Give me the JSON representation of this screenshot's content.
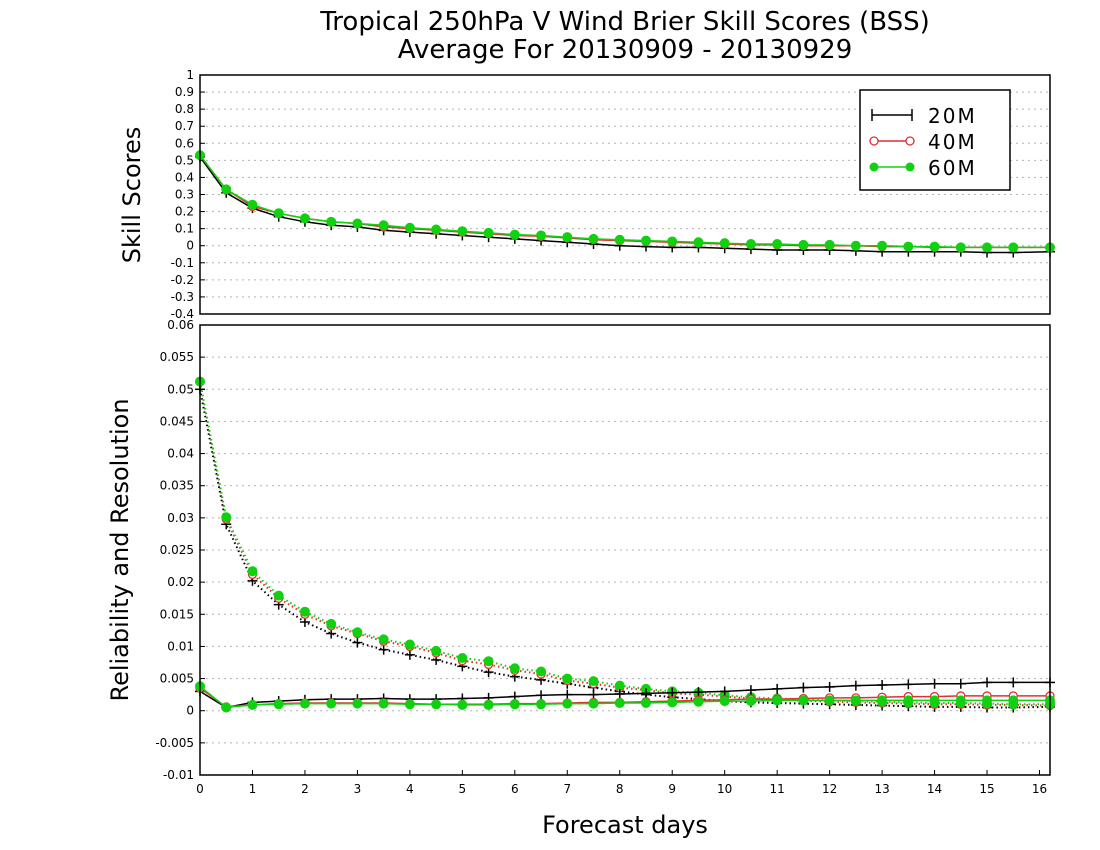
{
  "chart_data": [
    {
      "type": "line",
      "title": "Tropical 250hPa V Wind Brier Skill Scores (BSS)",
      "subtitle": "Average For 20130909 - 20130929",
      "xlabel": "",
      "ylabel": "Skill Scores",
      "xlim": [
        0,
        16.2
      ],
      "ylim": [
        -0.4,
        1
      ],
      "yticks": [
        "1",
        "0.9",
        "0.8",
        "0.7",
        "0.6",
        "0.5",
        "0.4",
        "0.3",
        "0.2",
        "0.1",
        "0",
        "-0.1",
        "-0.2",
        "-0.3",
        "-0.4"
      ],
      "grid": true,
      "legend_position": "top-right",
      "x": [
        0,
        0.5,
        1,
        1.5,
        2,
        2.5,
        3,
        3.5,
        4,
        4.5,
        5,
        5.5,
        6,
        6.5,
        7,
        7.5,
        8,
        8.5,
        9,
        9.5,
        10,
        10.5,
        11,
        11.5,
        12,
        12.5,
        13,
        13.5,
        14,
        14.5,
        15,
        15.5,
        16.2
      ],
      "series": [
        {
          "name": "20M",
          "values": [
            0.52,
            0.31,
            0.22,
            0.17,
            0.14,
            0.12,
            0.11,
            0.09,
            0.08,
            0.07,
            0.06,
            0.05,
            0.04,
            0.03,
            0.02,
            0.01,
            0.0,
            -0.005,
            -0.01,
            -0.01,
            -0.015,
            -0.02,
            -0.025,
            -0.025,
            -0.025,
            -0.03,
            -0.035,
            -0.035,
            -0.035,
            -0.035,
            -0.04,
            -0.04,
            -0.035
          ]
        },
        {
          "name": "40M",
          "values": [
            0.53,
            0.33,
            0.23,
            0.19,
            0.16,
            0.14,
            0.13,
            0.11,
            0.1,
            0.09,
            0.08,
            0.07,
            0.06,
            0.055,
            0.045,
            0.035,
            0.03,
            0.025,
            0.02,
            0.015,
            0.01,
            0.005,
            0.005,
            0.0,
            0.0,
            0.0,
            -0.005,
            -0.005,
            -0.01,
            -0.01,
            -0.01,
            -0.01,
            -0.01
          ]
        },
        {
          "name": "60M",
          "values": [
            0.53,
            0.33,
            0.24,
            0.19,
            0.16,
            0.14,
            0.13,
            0.12,
            0.105,
            0.095,
            0.085,
            0.075,
            0.065,
            0.06,
            0.05,
            0.04,
            0.035,
            0.03,
            0.025,
            0.02,
            0.015,
            0.01,
            0.01,
            0.005,
            0.005,
            0.0,
            0.0,
            -0.005,
            -0.005,
            -0.01,
            -0.01,
            -0.01,
            -0.01
          ]
        }
      ]
    },
    {
      "type": "line",
      "xlabel": "Forecast days",
      "ylabel": "Reliability and Resolution",
      "xlim": [
        0,
        16.2
      ],
      "ylim": [
        -0.01,
        0.06
      ],
      "yticks": [
        "0.06",
        "0.055",
        "0.05",
        "0.045",
        "0.04",
        "0.035",
        "0.03",
        "0.025",
        "0.02",
        "0.015",
        "0.01",
        "0.005",
        "0",
        "-0.005",
        "-0.01"
      ],
      "xticks": [
        "0",
        "1",
        "2",
        "3",
        "4",
        "5",
        "6",
        "7",
        "8",
        "9",
        "10",
        "11",
        "12",
        "13",
        "14",
        "15",
        "16"
      ],
      "grid": true,
      "x": [
        0,
        0.5,
        1,
        1.5,
        2,
        2.5,
        3,
        3.5,
        4,
        4.5,
        5,
        5.5,
        6,
        6.5,
        7,
        7.5,
        8,
        8.5,
        9,
        9.5,
        10,
        10.5,
        11,
        11.5,
        12,
        12.5,
        13,
        13.5,
        14,
        14.5,
        15,
        15.5,
        16.2
      ],
      "series": [
        {
          "name": "20M",
          "style": "dotted",
          "values": [
            0.05,
            0.029,
            0.0202,
            0.0165,
            0.0138,
            0.012,
            0.0106,
            0.0095,
            0.0087,
            0.0079,
            0.0069,
            0.006,
            0.0053,
            0.0048,
            0.0042,
            0.0036,
            0.003,
            0.0025,
            0.0021,
            0.0018,
            0.0015,
            0.0013,
            0.0012,
            0.0011,
            0.001,
            0.0009,
            0.0008,
            0.0007,
            0.0006,
            0.0006,
            0.0005,
            0.0005,
            0.0006
          ]
        },
        {
          "name": "40M",
          "style": "dotted",
          "values": [
            0.0512,
            0.0298,
            0.0212,
            0.0175,
            0.015,
            0.0132,
            0.012,
            0.0108,
            0.01,
            0.009,
            0.0078,
            0.0072,
            0.0063,
            0.0057,
            0.0047,
            0.0042,
            0.0036,
            0.0032,
            0.0027,
            0.0025,
            0.0022,
            0.0019,
            0.0017,
            0.0016,
            0.0014,
            0.0013,
            0.0012,
            0.0011,
            0.001,
            0.001,
            0.0009,
            0.0009,
            0.0008
          ]
        },
        {
          "name": "60M",
          "style": "dotted",
          "values": [
            0.0512,
            0.0301,
            0.0217,
            0.0179,
            0.0154,
            0.0135,
            0.0122,
            0.0111,
            0.0103,
            0.0093,
            0.0082,
            0.0077,
            0.0066,
            0.0061,
            0.005,
            0.0046,
            0.0039,
            0.0034,
            0.003,
            0.0028,
            0.0024,
            0.0021,
            0.0019,
            0.0018,
            0.0016,
            0.0015,
            0.0014,
            0.0013,
            0.0012,
            0.0012,
            0.0011,
            0.001,
            0.001
          ]
        },
        {
          "name": "20M",
          "style": "solid",
          "values": [
            0.003,
            0.0005,
            0.0013,
            0.0015,
            0.0017,
            0.0018,
            0.0018,
            0.0019,
            0.0018,
            0.0018,
            0.0019,
            0.002,
            0.0022,
            0.0024,
            0.0025,
            0.0025,
            0.0026,
            0.0027,
            0.0028,
            0.0029,
            0.003,
            0.0032,
            0.0034,
            0.0036,
            0.0037,
            0.0039,
            0.004,
            0.0041,
            0.0042,
            0.0042,
            0.0044,
            0.0044,
            0.0044
          ]
        },
        {
          "name": "40M",
          "style": "solid",
          "values": [
            0.0035,
            0.0006,
            0.0009,
            0.0011,
            0.0012,
            0.0012,
            0.0012,
            0.0012,
            0.0011,
            0.001,
            0.001,
            0.001,
            0.0011,
            0.0011,
            0.0012,
            0.0013,
            0.0013,
            0.0014,
            0.0015,
            0.0016,
            0.0017,
            0.0018,
            0.0018,
            0.0019,
            0.002,
            0.002,
            0.0021,
            0.0022,
            0.0022,
            0.0023,
            0.0023,
            0.0023,
            0.0023
          ]
        },
        {
          "name": "60M",
          "style": "solid",
          "values": [
            0.0038,
            0.0005,
            0.0009,
            0.001,
            0.0011,
            0.0011,
            0.0011,
            0.0011,
            0.001,
            0.001,
            0.0009,
            0.0009,
            0.001,
            0.001,
            0.0011,
            0.0011,
            0.0012,
            0.0012,
            0.0013,
            0.0014,
            0.0015,
            0.0015,
            0.0016,
            0.0016,
            0.0016,
            0.0016,
            0.0016,
            0.0016,
            0.0016,
            0.0016,
            0.0016,
            0.0016,
            0.0016
          ]
        }
      ]
    }
  ],
  "legend": [
    {
      "label": "20M",
      "color": "#000000",
      "marker": "plus"
    },
    {
      "label": "40M",
      "color": "#e03030",
      "marker": "open-circle"
    },
    {
      "label": "60M",
      "color": "#10d010",
      "marker": "filled-circle"
    }
  ],
  "colors": {
    "20M": "#000000",
    "40M": "#e03030",
    "60M": "#10d010",
    "grid": "#b4b4b4"
  }
}
